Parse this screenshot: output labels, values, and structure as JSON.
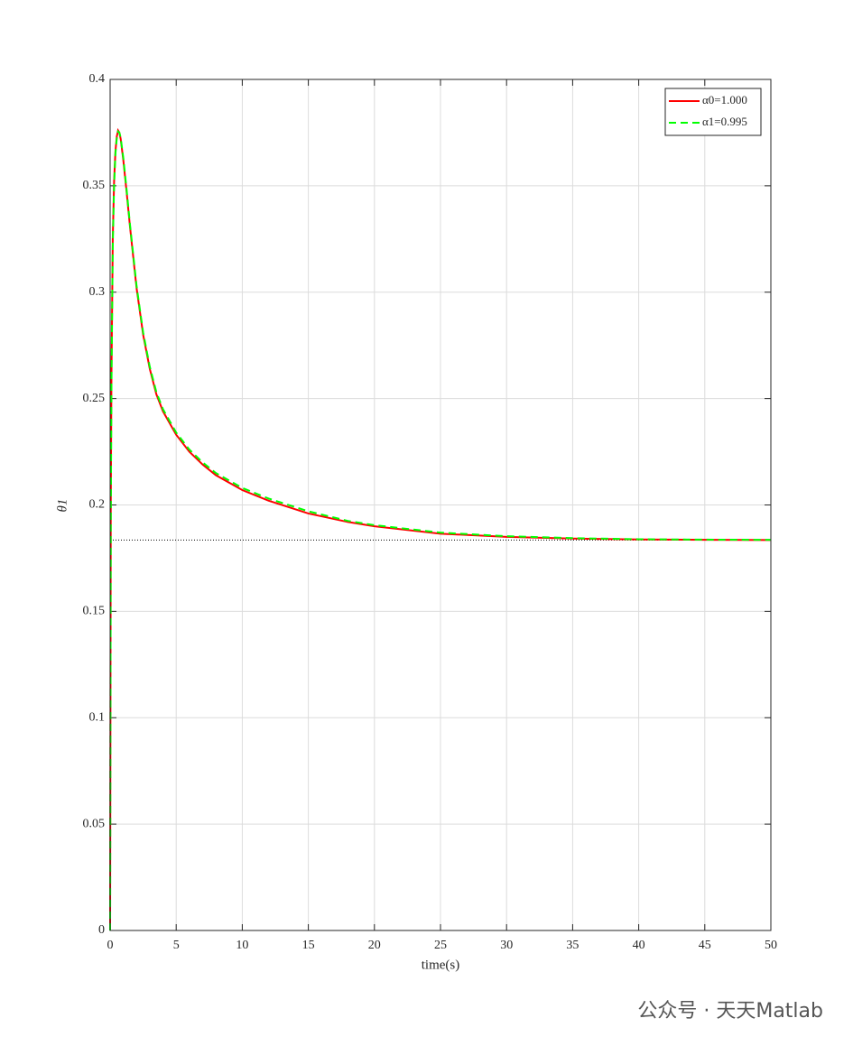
{
  "chart_data": {
    "type": "line",
    "xlabel": "time(s)",
    "ylabel": "θ1",
    "x": [
      0,
      0.05,
      0.1,
      0.2,
      0.3,
      0.4,
      0.5,
      0.6,
      0.7,
      0.8,
      1,
      1.25,
      1.5,
      2,
      2.5,
      3,
      3.5,
      4,
      5,
      6,
      7,
      8,
      10,
      12,
      15,
      18,
      20,
      25,
      30,
      35,
      40,
      45,
      50
    ],
    "series": [
      {
        "name": "α0=1.000",
        "color": "#ff0000",
        "dash": false,
        "values": [
          0,
          0.2,
          0.26,
          0.325,
          0.352,
          0.366,
          0.373,
          0.376,
          0.375,
          0.372,
          0.362,
          0.347,
          0.331,
          0.302,
          0.28,
          0.264,
          0.252,
          0.244,
          0.233,
          0.225,
          0.219,
          0.214,
          0.207,
          0.202,
          0.196,
          0.192,
          0.19,
          0.1865,
          0.185,
          0.1842,
          0.1838,
          0.1836,
          0.1835
        ]
      },
      {
        "name": "α1=0.995",
        "color": "#00ff00",
        "dash": true,
        "values": [
          0,
          0.19,
          0.255,
          0.322,
          0.35,
          0.365,
          0.372,
          0.3755,
          0.375,
          0.3725,
          0.363,
          0.348,
          0.332,
          0.303,
          0.281,
          0.265,
          0.253,
          0.245,
          0.234,
          0.226,
          0.22,
          0.215,
          0.208,
          0.203,
          0.197,
          0.1925,
          0.1905,
          0.187,
          0.1853,
          0.1844,
          0.1839,
          0.1837,
          0.1836
        ]
      }
    ],
    "reference_line": 0.1835,
    "xlim": [
      0,
      50
    ],
    "xticks": [
      0,
      5,
      10,
      15,
      20,
      25,
      30,
      35,
      40,
      45,
      50
    ],
    "ylim": [
      0,
      0.4
    ],
    "yticks": [
      0,
      0.05,
      0.1,
      0.15,
      0.2,
      0.25,
      0.3,
      0.35,
      0.4
    ],
    "grid": true,
    "legend": "upper right"
  },
  "watermark": "公众号 · 天天Matlab"
}
